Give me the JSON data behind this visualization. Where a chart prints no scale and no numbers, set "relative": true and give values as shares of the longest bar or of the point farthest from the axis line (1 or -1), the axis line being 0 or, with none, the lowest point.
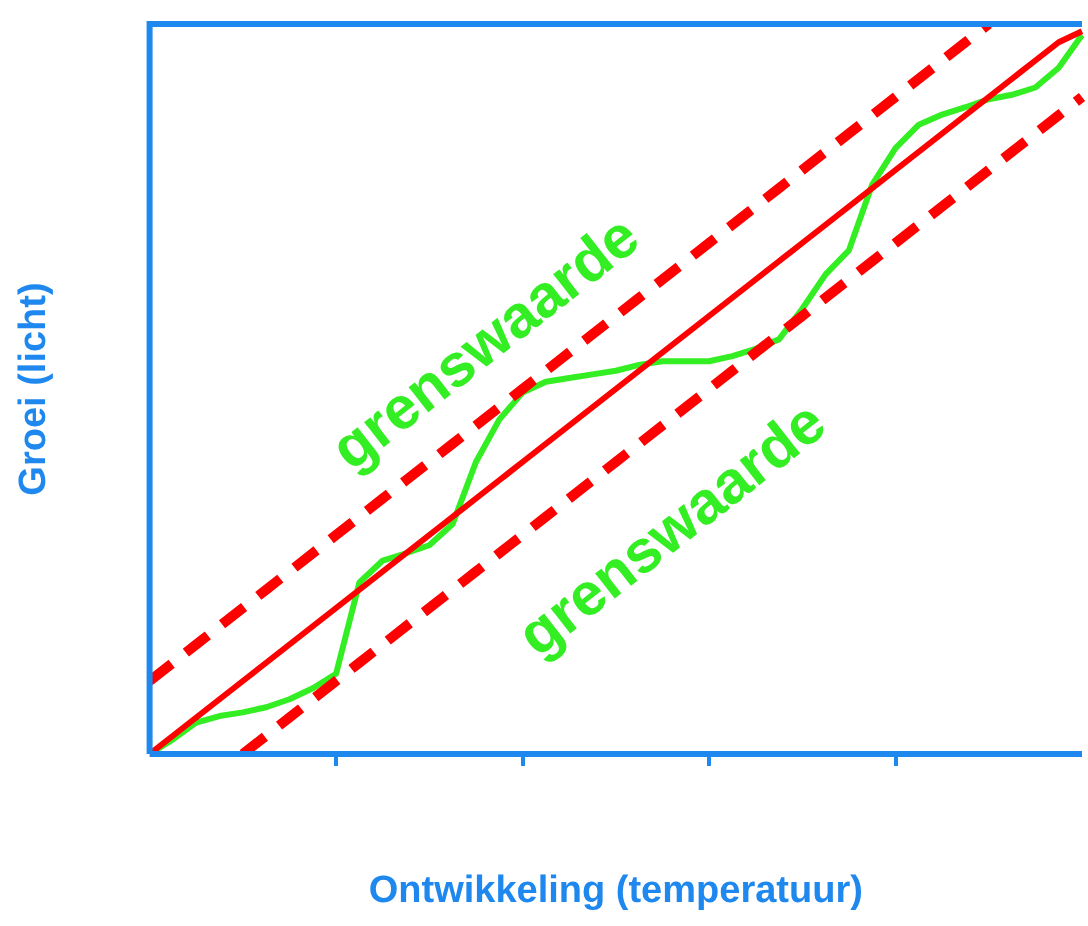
{
  "chart_data": {
    "type": "line",
    "relative": true,
    "xlabel": "Ontwikkeling (temperatuur)",
    "ylabel": "Groei (licht)",
    "categories": [
      null,
      null,
      null,
      null,
      null,
      null,
      null,
      null,
      null,
      null,
      null,
      null,
      null,
      null,
      null,
      null,
      null,
      null,
      null,
      null,
      null,
      null,
      null,
      null,
      null,
      null,
      null,
      null,
      null,
      null,
      null,
      null,
      null,
      null,
      null,
      null,
      null,
      null,
      null,
      null,
      null
    ],
    "grid": false,
    "legend": false,
    "marker": "none",
    "series": [
      {
        "color": "#ff0000",
        "line_style": "solid",
        "values": [
          0,
          0.025,
          0.05,
          0.075,
          0.1,
          0.125,
          0.15,
          0.175,
          0.2,
          0.225,
          0.25,
          0.275,
          0.3,
          0.325,
          0.35,
          0.375,
          0.4,
          0.425,
          0.45,
          0.475,
          0.5,
          0.525,
          0.55,
          0.575,
          0.6,
          0.625,
          0.65,
          0.675,
          0.7,
          0.725,
          0.75,
          0.775,
          0.8,
          0.825,
          0.85,
          0.875,
          0.9,
          0.925,
          0.95,
          0.975,
          0.99
        ]
      },
      {
        "color": "#ff0000",
        "line_style": "dashed",
        "values": [
          0.1,
          0.125,
          0.15,
          0.175,
          0.2,
          0.225,
          0.25,
          0.275,
          0.3,
          0.325,
          0.35,
          0.375,
          0.4,
          0.425,
          0.45,
          0.475,
          0.5,
          0.525,
          0.55,
          0.575,
          0.6,
          0.625,
          0.65,
          0.675,
          0.7,
          0.725,
          0.75,
          0.775,
          0.8,
          0.825,
          0.85,
          0.875,
          0.9,
          0.925,
          0.95,
          0.975,
          1,
          null,
          null,
          null,
          null
        ]
      },
      {
        "color": "#ff0000",
        "line_style": "dashed",
        "values": [
          null,
          null,
          null,
          null,
          0,
          0.025,
          0.05,
          0.075,
          0.1,
          0.125,
          0.15,
          0.175,
          0.2,
          0.225,
          0.25,
          0.275,
          0.3,
          0.325,
          0.35,
          0.375,
          0.4,
          0.425,
          0.45,
          0.475,
          0.5,
          0.525,
          0.55,
          0.575,
          0.6,
          0.625,
          0.65,
          0.675,
          0.7,
          0.725,
          0.75,
          0.775,
          0.8,
          0.825,
          0.85,
          0.875,
          0.9
        ]
      },
      {
        "color": "#33ee22",
        "line_style": "solid",
        "values": [
          0,
          0.02,
          0.043,
          0.052,
          0.057,
          0.064,
          0.075,
          0.09,
          0.11,
          0.235,
          0.265,
          0.275,
          0.286,
          0.315,
          0.4,
          0.458,
          0.495,
          0.51,
          0.515,
          0.52,
          0.525,
          0.533,
          0.538,
          0.538,
          0.538,
          0.545,
          0.555,
          0.568,
          0.61,
          0.657,
          0.69,
          0.78,
          0.83,
          0.862,
          0.876,
          0.886,
          0.897,
          0.903,
          0.913,
          0.94,
          0.985
        ]
      }
    ],
    "annotations": [
      "grenswaarde",
      "grenswaarde"
    ]
  }
}
